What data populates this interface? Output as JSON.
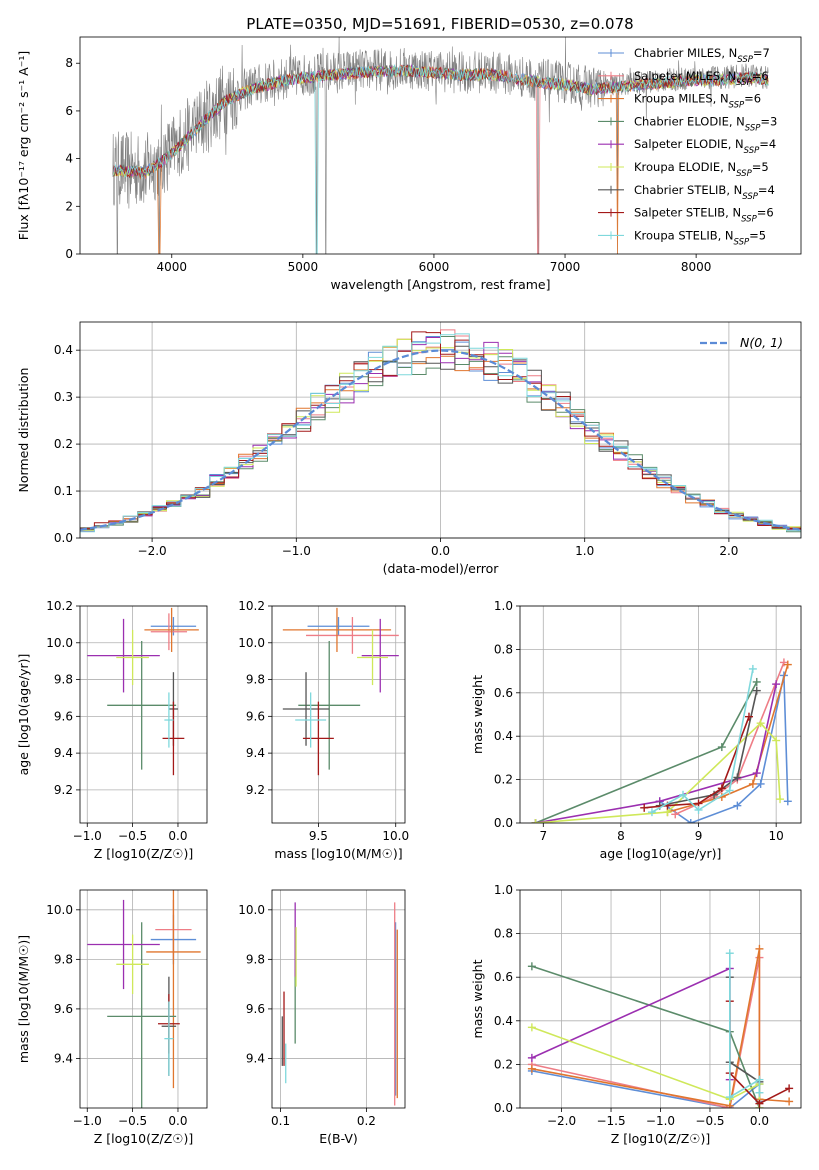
{
  "figure_title": "PLATE=0350, MJD=51691, FIBERID=0530, z=0.078",
  "colors": {
    "chabrier_miles": "#5e8ed6",
    "salpeter_miles": "#ee7d86",
    "kroupa_miles": "#e0762e",
    "chabrier_elodie": "#5b8b6a",
    "salpeter_elodie": "#9b2fb0",
    "kroupa_elodie": "#cfe85a",
    "chabrier_stelib": "#555555",
    "salpeter_stelib": "#a31919",
    "kroupa_stelib": "#7fd8dc",
    "observed_spectrum": "#808080",
    "normal_curve": "#5b8bd6"
  },
  "legend": [
    {
      "key": "chabrier_miles",
      "pre": "Chabrier MILES, N",
      "sub": "SSP",
      "post": "=7"
    },
    {
      "key": "salpeter_miles",
      "pre": "Salpeter MILES, N",
      "sub": "SSP",
      "post": "=6"
    },
    {
      "key": "kroupa_miles",
      "pre": "Kroupa MILES, N",
      "sub": "SSP",
      "post": "=6"
    },
    {
      "key": "chabrier_elodie",
      "pre": "Chabrier ELODIE, N",
      "sub": "SSP",
      "post": "=3"
    },
    {
      "key": "salpeter_elodie",
      "pre": "Salpeter ELODIE, N",
      "sub": "SSP",
      "post": "=4"
    },
    {
      "key": "kroupa_elodie",
      "pre": "Kroupa ELODIE, N",
      "sub": "SSP",
      "post": "=5"
    },
    {
      "key": "chabrier_stelib",
      "pre": "Chabrier STELIB, N",
      "sub": "SSP",
      "post": "=4"
    },
    {
      "key": "salpeter_stelib",
      "pre": "Salpeter STELIB, N",
      "sub": "SSP",
      "post": "=6"
    },
    {
      "key": "kroupa_stelib",
      "pre": "Kroupa STELIB, N",
      "sub": "SSP",
      "post": "=5"
    }
  ],
  "chart_data": [
    {
      "id": "spectrum",
      "type": "line",
      "xlabel": "wavelength [Angstrom, rest frame]",
      "ylabel": "Flux [fλ10⁻¹⁷ erg cm⁻² s⁻¹ A⁻¹]",
      "xlim": [
        3300,
        8800
      ],
      "ylim": [
        0,
        9.1
      ],
      "xticks": [
        4000,
        5000,
        6000,
        7000,
        8000
      ],
      "yticks": [
        0,
        2,
        4,
        6,
        8
      ],
      "continuum_x": [
        3550,
        3800,
        4000,
        4200,
        4400,
        4600,
        4800,
        5000,
        5200,
        5400,
        5600,
        5800,
        6000,
        6200,
        6400,
        6600,
        6800,
        7000,
        7200,
        7400,
        7600,
        7800,
        8000,
        8200,
        8400,
        8550
      ],
      "continuum_y": [
        3.6,
        3.5,
        4.3,
        5.4,
        6.5,
        7.0,
        7.3,
        7.5,
        7.6,
        7.7,
        7.75,
        7.8,
        7.7,
        7.6,
        7.65,
        7.5,
        7.3,
        7.2,
        7.0,
        7.1,
        7.2,
        7.3,
        7.4,
        7.4,
        7.5,
        7.4
      ]
    },
    {
      "id": "residuals",
      "type": "histogram",
      "xlabel": "(data-model)/error",
      "ylabel": "Normed distribution",
      "xlim": [
        -2.5,
        2.5
      ],
      "ylim": [
        0,
        0.46
      ],
      "xticks": [
        -2,
        -1,
        0,
        1,
        2
      ],
      "yticks": [
        0.0,
        0.1,
        0.2,
        0.3,
        0.4
      ],
      "bin_width": 0.1,
      "reference_label": "N(0, 1)",
      "grid": true,
      "legend_position": "top-right"
    },
    {
      "id": "age_vs_Z",
      "type": "errorbar",
      "xlabel": "Z [log10(Z/Z☉)]",
      "ylabel": "age  [log10(age/yr)]",
      "xlim": [
        -1.08,
        0.32
      ],
      "ylim": [
        9.02,
        10.2
      ],
      "xticks": [
        -1.0,
        -0.5,
        0.0
      ],
      "yticks": [
        9.2,
        9.4,
        9.6,
        9.8,
        10.0,
        10.2
      ],
      "points": [
        {
          "key": "chabrier_miles",
          "x": -0.05,
          "xerr": 0.25,
          "y": 10.09,
          "yerr": 0.05
        },
        {
          "key": "salpeter_miles",
          "x": -0.1,
          "xerr": 0.2,
          "y": 10.06,
          "yerr": 0.1
        },
        {
          "key": "kroupa_miles",
          "x": -0.07,
          "xerr": 0.3,
          "y": 10.07,
          "yerr": 0.12
        },
        {
          "key": "chabrier_elodie",
          "x": -0.4,
          "xerr": 0.38,
          "y": 9.66,
          "yerr": 0.35
        },
        {
          "key": "salpeter_elodie",
          "x": -0.6,
          "xerr": 0.4,
          "y": 9.93,
          "yerr": 0.2
        },
        {
          "key": "kroupa_elodie",
          "x": -0.5,
          "xerr": 0.18,
          "y": 9.92,
          "yerr": 0.15
        },
        {
          "key": "chabrier_stelib",
          "x": -0.05,
          "xerr": 0.05,
          "y": 9.64,
          "yerr": 0.2
        },
        {
          "key": "salpeter_stelib",
          "x": -0.05,
          "xerr": 0.12,
          "y": 9.48,
          "yerr": 0.2
        },
        {
          "key": "kroupa_stelib",
          "x": -0.1,
          "xerr": 0.05,
          "y": 9.58,
          "yerr": 0.15
        }
      ]
    },
    {
      "id": "age_vs_mass",
      "type": "errorbar",
      "xlabel": "mass [log10(M/M☉)]",
      "ylabel": "",
      "xlim": [
        9.2,
        10.06
      ],
      "ylim": [
        9.02,
        10.2
      ],
      "xticks": [
        9.5,
        10.0
      ],
      "yticks": [
        9.2,
        9.4,
        9.6,
        9.8,
        10.0,
        10.2
      ],
      "points": [
        {
          "key": "chabrier_miles",
          "x": 9.63,
          "xerr": 0.2,
          "y": 10.09,
          "yerr": 0.05
        },
        {
          "key": "salpeter_miles",
          "x": 9.72,
          "xerr": 0.3,
          "y": 10.04,
          "yerr": 0.1
        },
        {
          "key": "kroupa_miles",
          "x": 9.62,
          "xerr": 0.35,
          "y": 10.07,
          "yerr": 0.12
        },
        {
          "key": "chabrier_elodie",
          "x": 9.57,
          "xerr": 0.2,
          "y": 9.66,
          "yerr": 0.35
        },
        {
          "key": "salpeter_elodie",
          "x": 9.9,
          "xerr": 0.12,
          "y": 9.93,
          "yerr": 0.2
        },
        {
          "key": "kroupa_elodie",
          "x": 9.85,
          "xerr": 0.1,
          "y": 9.92,
          "yerr": 0.15
        },
        {
          "key": "chabrier_stelib",
          "x": 9.42,
          "xerr": 0.15,
          "y": 9.64,
          "yerr": 0.2
        },
        {
          "key": "salpeter_stelib",
          "x": 9.5,
          "xerr": 0.1,
          "y": 9.48,
          "yerr": 0.2
        },
        {
          "key": "kroupa_stelib",
          "x": 9.45,
          "xerr": 0.1,
          "y": 9.58,
          "yerr": 0.15
        }
      ]
    },
    {
      "id": "weight_vs_age",
      "type": "line",
      "xlabel": "age  [log10(age/yr)]",
      "ylabel": "mass weight",
      "xlim": [
        6.7,
        10.32
      ],
      "ylim": [
        0,
        1.0
      ],
      "xticks": [
        7,
        8,
        9,
        10
      ],
      "yticks": [
        0.0,
        0.2,
        0.4,
        0.6,
        0.8,
        1.0
      ],
      "series": [
        {
          "key": "chabrier_miles",
          "x": [
            8.5,
            8.9,
            9.5,
            9.8,
            10.1,
            10.15
          ],
          "y": [
            0.1,
            0.0,
            0.08,
            0.18,
            0.68,
            0.1
          ]
        },
        {
          "key": "salpeter_miles",
          "x": [
            8.7,
            9.2,
            9.5,
            10.1
          ],
          "y": [
            0.04,
            0.12,
            0.2,
            0.74
          ]
        },
        {
          "key": "kroupa_miles",
          "x": [
            8.6,
            9.3,
            9.7,
            10.15
          ],
          "y": [
            0.05,
            0.12,
            0.18,
            0.73
          ]
        },
        {
          "key": "chabrier_elodie",
          "x": [
            6.9,
            9.3,
            9.75
          ],
          "y": [
            0.0,
            0.35,
            0.65
          ]
        },
        {
          "key": "salpeter_elodie",
          "x": [
            6.9,
            8.5,
            9.75,
            10.0
          ],
          "y": [
            0.0,
            0.1,
            0.23,
            0.64
          ]
        },
        {
          "key": "kroupa_elodie",
          "x": [
            6.9,
            8.6,
            9.8,
            10.0,
            10.05
          ],
          "y": [
            0.0,
            0.05,
            0.46,
            0.38,
            0.11
          ]
        },
        {
          "key": "chabrier_stelib",
          "x": [
            8.5,
            9.2,
            9.5,
            9.75
          ],
          "y": [
            0.08,
            0.13,
            0.21,
            0.61
          ]
        },
        {
          "key": "salpeter_stelib",
          "x": [
            8.3,
            8.6,
            9.0,
            9.3,
            9.65
          ],
          "y": [
            0.07,
            0.08,
            0.09,
            0.16,
            0.49
          ]
        },
        {
          "key": "kroupa_stelib",
          "x": [
            8.4,
            8.8,
            9.0,
            9.4,
            9.7
          ],
          "y": [
            0.05,
            0.13,
            0.06,
            0.15,
            0.71
          ]
        }
      ]
    },
    {
      "id": "mass_vs_Z",
      "type": "errorbar",
      "xlabel": "Z [log10(Z/Z☉)]",
      "ylabel": "mass [log10(M/M☉)]",
      "xlim": [
        -1.08,
        0.32
      ],
      "ylim": [
        9.2,
        10.08
      ],
      "xticks": [
        -1.0,
        -0.5,
        0.0
      ],
      "yticks": [
        9.4,
        9.6,
        9.8,
        10.0
      ],
      "points": [
        {
          "key": "chabrier_miles",
          "x": -0.05,
          "xerr": 0.25,
          "y": 9.88,
          "yerr": 0.1
        },
        {
          "key": "salpeter_miles",
          "x": -0.05,
          "xerr": 0.2,
          "y": 9.92,
          "yerr": 0.12
        },
        {
          "key": "kroupa_miles",
          "x": -0.05,
          "xerr": 0.3,
          "y": 9.83,
          "yerr": 0.55
        },
        {
          "key": "chabrier_elodie",
          "x": -0.4,
          "xerr": 0.38,
          "y": 9.57,
          "yerr": 0.38
        },
        {
          "key": "salpeter_elodie",
          "x": -0.6,
          "xerr": 0.4,
          "y": 9.86,
          "yerr": 0.18
        },
        {
          "key": "kroupa_elodie",
          "x": -0.5,
          "xerr": 0.18,
          "y": 9.78,
          "yerr": 0.12
        },
        {
          "key": "chabrier_stelib",
          "x": -0.1,
          "xerr": 0.08,
          "y": 9.53,
          "yerr": 0.2
        },
        {
          "key": "salpeter_stelib",
          "x": -0.1,
          "xerr": 0.12,
          "y": 9.54,
          "yerr": 0.12
        },
        {
          "key": "kroupa_stelib",
          "x": -0.1,
          "xerr": 0.05,
          "y": 9.48,
          "yerr": 0.15
        }
      ]
    },
    {
      "id": "mass_vs_ebv",
      "type": "errorbar",
      "xlabel": "E(B-V)",
      "ylabel": "",
      "xlim": [
        0.09,
        0.245
      ],
      "ylim": [
        9.2,
        10.08
      ],
      "xticks": [
        0.1,
        0.2
      ],
      "yticks": [
        9.4,
        9.6,
        9.8,
        10.0
      ],
      "points": [
        {
          "key": "chabrier_miles",
          "x": 0.234,
          "y": 9.6,
          "yerr": 0.35
        },
        {
          "key": "salpeter_miles",
          "x": 0.233,
          "y": 9.62,
          "yerr": 0.41
        },
        {
          "key": "kroupa_miles",
          "x": 0.236,
          "y": 9.58,
          "yerr": 0.34
        },
        {
          "key": "chabrier_elodie",
          "x": 0.117,
          "y": 9.61,
          "yerr": 0.15
        },
        {
          "key": "salpeter_elodie",
          "x": 0.117,
          "y": 9.88,
          "yerr": 0.15
        },
        {
          "key": "kroupa_elodie",
          "x": 0.118,
          "y": 9.81,
          "yerr": 0.12
        },
        {
          "key": "chabrier_stelib",
          "x": 0.102,
          "y": 9.47,
          "yerr": 0.1
        },
        {
          "key": "salpeter_stelib",
          "x": 0.104,
          "y": 9.52,
          "yerr": 0.15
        },
        {
          "key": "kroupa_stelib",
          "x": 0.106,
          "y": 9.38,
          "yerr": 0.08
        }
      ]
    },
    {
      "id": "weight_vs_Z",
      "type": "line",
      "xlabel": "Z [log10(Z/Z☉)]",
      "ylabel": "mass weight",
      "xlim": [
        -2.42,
        0.42
      ],
      "ylim": [
        0,
        1.0
      ],
      "xticks": [
        -2.0,
        -1.5,
        -1.0,
        -0.5,
        0.0
      ],
      "yticks": [
        0.0,
        0.2,
        0.4,
        0.6,
        0.8,
        1.0
      ],
      "series": [
        {
          "key": "chabrier_miles",
          "x": [
            -2.3,
            -0.3,
            0.0,
            0.0
          ],
          "y": [
            0.17,
            0.0,
            0.11,
            0.03
          ]
        },
        {
          "key": "salpeter_miles",
          "x": [
            -2.3,
            -0.3,
            0.0,
            0.0
          ],
          "y": [
            0.2,
            0.0,
            0.69,
            0.04
          ]
        },
        {
          "key": "kroupa_miles",
          "x": [
            -2.3,
            -0.3,
            0.0,
            0.0,
            0.3
          ],
          "y": [
            0.18,
            0.01,
            0.73,
            0.04,
            0.03
          ]
        },
        {
          "key": "chabrier_elodie",
          "x": [
            -2.3,
            -0.3,
            0.0
          ],
          "y": [
            0.65,
            0.35,
            0.0
          ]
        },
        {
          "key": "salpeter_elodie",
          "x": [
            -2.3,
            -0.3,
            -0.3
          ],
          "y": [
            0.23,
            0.64,
            0.13
          ]
        },
        {
          "key": "kroupa_elodie",
          "x": [
            -2.3,
            -0.3,
            0.0,
            0.0
          ],
          "y": [
            0.37,
            0.04,
            0.11,
            0.0
          ]
        },
        {
          "key": "chabrier_stelib",
          "x": [
            -0.3,
            -0.3,
            0.0
          ],
          "y": [
            0.6,
            0.21,
            0.12
          ]
        },
        {
          "key": "salpeter_stelib",
          "x": [
            -0.3,
            -0.3,
            0.0,
            0.3
          ],
          "y": [
            0.49,
            0.16,
            0.02,
            0.09
          ]
        },
        {
          "key": "kroupa_stelib",
          "x": [
            -0.3,
            -0.3,
            0.0,
            0.0
          ],
          "y": [
            0.71,
            0.05,
            0.13,
            0.07
          ]
        }
      ]
    }
  ]
}
